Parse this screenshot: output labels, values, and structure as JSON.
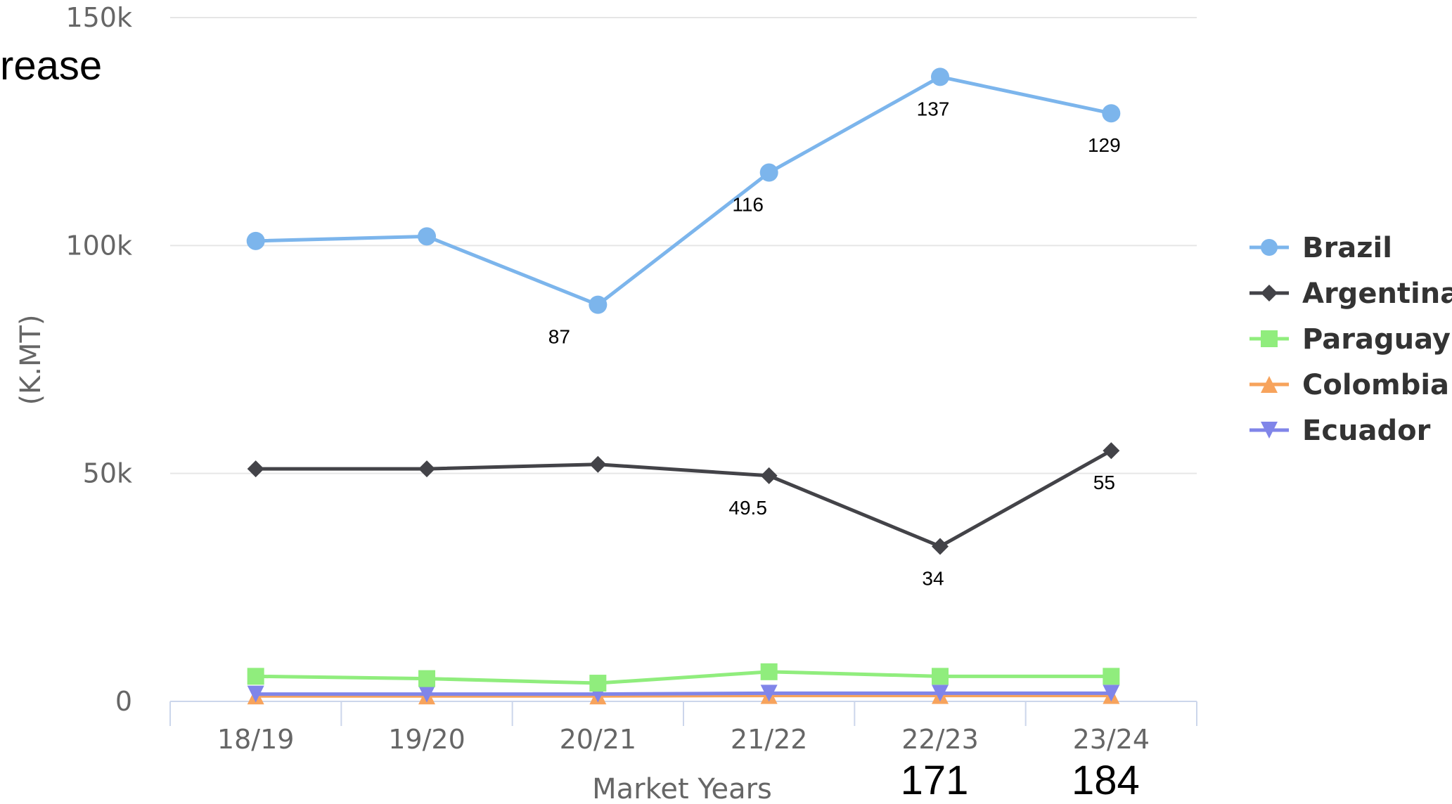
{
  "chart_data": {
    "type": "line",
    "title": "",
    "xlabel": "Market Years",
    "ylabel": "(K.MT)",
    "categories": [
      "18/19",
      "19/20",
      "20/21",
      "21/22",
      "22/23",
      "23/24"
    ],
    "ylim": [
      0,
      150000
    ],
    "yticks": [
      {
        "value": 0,
        "label": "0"
      },
      {
        "value": 50000,
        "label": "50k"
      },
      {
        "value": 100000,
        "label": "100k"
      },
      {
        "value": 150000,
        "label": "150k"
      }
    ],
    "grid": true,
    "legend_position": "right",
    "series": [
      {
        "name": "Brazil",
        "color": "#7cb5ec",
        "marker": "circle",
        "values": [
          101000,
          102000,
          87000,
          116000,
          137000,
          129000
        ],
        "labels": [
          null,
          null,
          "87",
          "116",
          "137",
          "129"
        ]
      },
      {
        "name": "Argentina",
        "color": "#434348",
        "marker": "diamond",
        "values": [
          51000,
          51000,
          52000,
          49500,
          34000,
          55000
        ],
        "labels": [
          null,
          null,
          null,
          "49.5",
          "34",
          "55"
        ]
      },
      {
        "name": "Paraguay",
        "color": "#90ed7d",
        "marker": "square",
        "values": [
          5500,
          5000,
          4000,
          6500,
          5500,
          5500
        ],
        "labels": [
          null,
          null,
          null,
          null,
          null,
          null
        ]
      },
      {
        "name": "Colombia",
        "color": "#f7a35c",
        "marker": "triangle",
        "values": [
          1200,
          1200,
          1200,
          1300,
          1300,
          1300
        ],
        "labels": [
          null,
          null,
          null,
          null,
          null,
          null
        ]
      },
      {
        "name": "Ecuador",
        "color": "#8085e9",
        "marker": "triangle-down",
        "values": [
          1600,
          1600,
          1600,
          1800,
          1800,
          1800
        ],
        "labels": [
          null,
          null,
          null,
          null,
          null,
          null
        ]
      }
    ]
  },
  "overlay": {
    "partial_heading": "rease",
    "totals": [
      {
        "category": "22/23",
        "text": "171"
      },
      {
        "category": "23/24",
        "text": "184"
      }
    ]
  }
}
